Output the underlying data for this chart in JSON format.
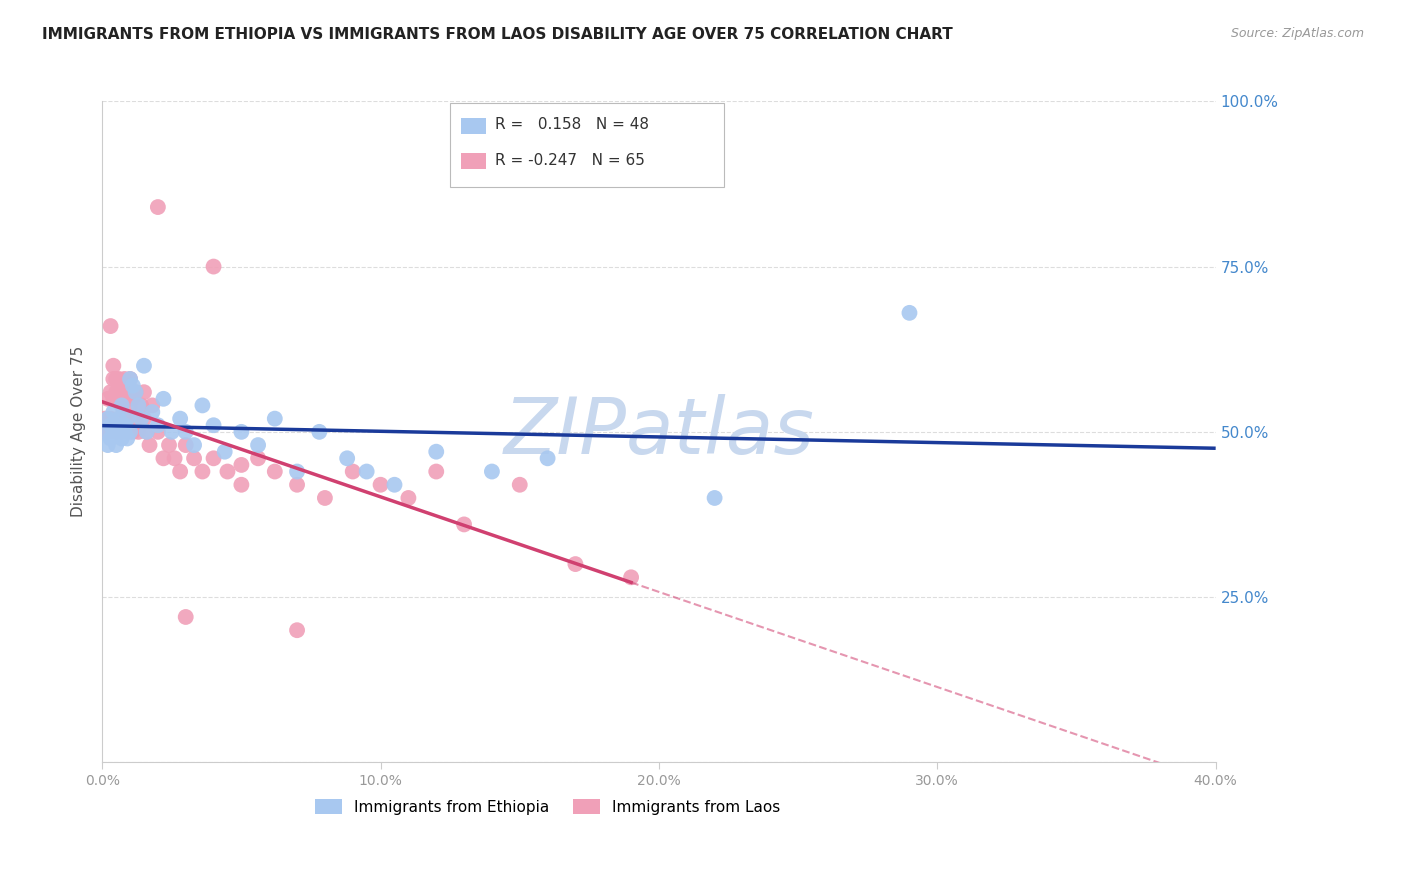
{
  "title": "IMMIGRANTS FROM ETHIOPIA VS IMMIGRANTS FROM LAOS DISABILITY AGE OVER 75 CORRELATION CHART",
  "source": "Source: ZipAtlas.com",
  "ylabel": "Disability Age Over 75",
  "xlim": [
    0.0,
    0.4
  ],
  "ylim": [
    0.0,
    1.0
  ],
  "xticks": [
    0.0,
    0.1,
    0.2,
    0.3,
    0.4
  ],
  "xtick_labels": [
    "0.0%",
    "10.0%",
    "20.0%",
    "30.0%",
    "40.0%"
  ],
  "yticks": [
    0.0,
    0.25,
    0.5,
    0.75,
    1.0
  ],
  "ytick_labels": [
    "",
    "25.0%",
    "50.0%",
    "75.0%",
    "100.0%"
  ],
  "R_ethiopia": 0.158,
  "N_ethiopia": 48,
  "R_laos": -0.247,
  "N_laos": 65,
  "blue_color": "#A8C8F0",
  "pink_color": "#F0A0B8",
  "blue_line_color": "#1A3A9A",
  "pink_line_color": "#D04070",
  "grid_color": "#DDDDDD",
  "right_label_color": "#4488CC",
  "watermark_color": "#C8D8EE",
  "background_color": "#FFFFFF",
  "ethiopia_x": [
    0.001,
    0.002,
    0.002,
    0.003,
    0.003,
    0.004,
    0.004,
    0.005,
    0.005,
    0.006,
    0.006,
    0.007,
    0.007,
    0.008,
    0.008,
    0.009,
    0.009,
    0.01,
    0.01,
    0.011,
    0.012,
    0.013,
    0.014,
    0.015,
    0.016,
    0.018,
    0.02,
    0.022,
    0.025,
    0.028,
    0.03,
    0.033,
    0.036,
    0.04,
    0.044,
    0.05,
    0.056,
    0.062,
    0.07,
    0.078,
    0.088,
    0.095,
    0.105,
    0.12,
    0.14,
    0.16,
    0.22,
    0.29
  ],
  "ethiopia_y": [
    0.5,
    0.48,
    0.52,
    0.49,
    0.51,
    0.5,
    0.53,
    0.48,
    0.51,
    0.5,
    0.52,
    0.49,
    0.54,
    0.51,
    0.5,
    0.49,
    0.52,
    0.58,
    0.5,
    0.57,
    0.56,
    0.54,
    0.52,
    0.6,
    0.5,
    0.53,
    0.51,
    0.55,
    0.5,
    0.52,
    0.5,
    0.48,
    0.54,
    0.51,
    0.47,
    0.5,
    0.48,
    0.52,
    0.44,
    0.5,
    0.46,
    0.44,
    0.42,
    0.47,
    0.44,
    0.46,
    0.4,
    0.68
  ],
  "laos_x": [
    0.001,
    0.001,
    0.002,
    0.002,
    0.003,
    0.003,
    0.003,
    0.004,
    0.004,
    0.004,
    0.005,
    0.005,
    0.005,
    0.006,
    0.006,
    0.006,
    0.007,
    0.007,
    0.007,
    0.008,
    0.008,
    0.008,
    0.009,
    0.009,
    0.01,
    0.01,
    0.011,
    0.011,
    0.012,
    0.012,
    0.013,
    0.014,
    0.015,
    0.015,
    0.016,
    0.017,
    0.018,
    0.02,
    0.022,
    0.024,
    0.026,
    0.028,
    0.03,
    0.033,
    0.036,
    0.04,
    0.045,
    0.05,
    0.056,
    0.062,
    0.07,
    0.08,
    0.09,
    0.1,
    0.11,
    0.12,
    0.13,
    0.15,
    0.17,
    0.19,
    0.04,
    0.02,
    0.03,
    0.05,
    0.07
  ],
  "laos_y": [
    0.5,
    0.52,
    0.5,
    0.55,
    0.52,
    0.56,
    0.66,
    0.55,
    0.58,
    0.6,
    0.5,
    0.56,
    0.58,
    0.52,
    0.55,
    0.58,
    0.54,
    0.56,
    0.5,
    0.55,
    0.58,
    0.52,
    0.56,
    0.5,
    0.54,
    0.58,
    0.55,
    0.5,
    0.52,
    0.56,
    0.5,
    0.54,
    0.52,
    0.56,
    0.5,
    0.48,
    0.54,
    0.5,
    0.46,
    0.48,
    0.46,
    0.44,
    0.48,
    0.46,
    0.44,
    0.46,
    0.44,
    0.42,
    0.46,
    0.44,
    0.42,
    0.4,
    0.44,
    0.42,
    0.4,
    0.44,
    0.36,
    0.42,
    0.3,
    0.28,
    0.75,
    0.84,
    0.22,
    0.45,
    0.2
  ]
}
